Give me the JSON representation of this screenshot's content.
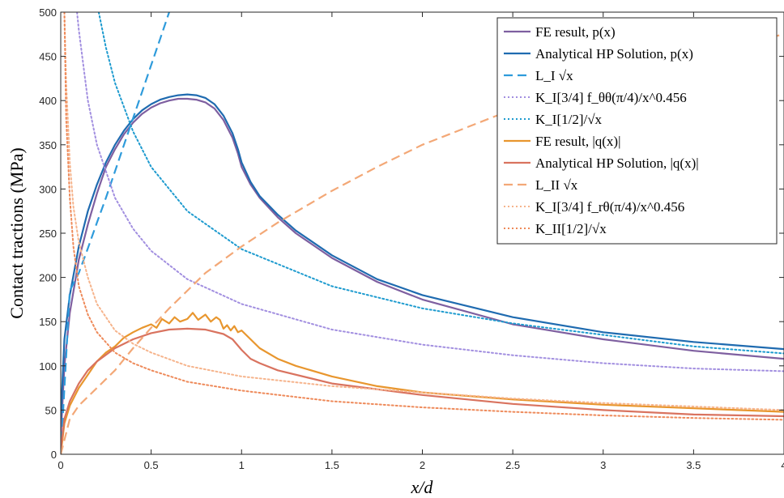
{
  "chart_data": {
    "type": "line",
    "xlabel": "x/d",
    "ylabel": "Contact tractions (MPa)",
    "xlim": [
      0,
      4
    ],
    "ylim": [
      0,
      500
    ],
    "xticks": [
      0,
      0.5,
      1,
      1.5,
      2,
      2.5,
      3,
      3.5,
      4
    ],
    "xtick_labels": [
      "0",
      "0.5",
      "1",
      "1.5",
      "2",
      "2.5",
      "3",
      "3.5",
      "4"
    ],
    "yticks": [
      0,
      50,
      100,
      150,
      200,
      250,
      300,
      350,
      400,
      450,
      500
    ],
    "ytick_labels": [
      "0",
      "50",
      "100",
      "150",
      "200",
      "250",
      "300",
      "350",
      "400",
      "450",
      "500"
    ],
    "grid": false,
    "legend_position": "top-right",
    "series": [
      {
        "name": "FE result, p(x)",
        "color": "#7E5FA0",
        "style": "solid",
        "width": 2.2,
        "x": [
          0,
          0.02,
          0.05,
          0.1,
          0.15,
          0.2,
          0.25,
          0.3,
          0.35,
          0.4,
          0.45,
          0.5,
          0.55,
          0.6,
          0.65,
          0.7,
          0.75,
          0.8,
          0.85,
          0.9,
          0.95,
          0.98,
          1.0,
          1.05,
          1.1,
          1.2,
          1.3,
          1.5,
          1.75,
          2.0,
          2.5,
          3.0,
          3.5,
          4.0
        ],
        "y": [
          20,
          100,
          160,
          220,
          260,
          295,
          325,
          345,
          362,
          375,
          385,
          392,
          397,
          400,
          402,
          402,
          401,
          398,
          391,
          378,
          358,
          340,
          325,
          305,
          290,
          268,
          250,
          222,
          195,
          175,
          147,
          130,
          117,
          108
        ]
      },
      {
        "name": "Analytical HP Solution, p(x)",
        "color": "#1F6BB0",
        "style": "solid",
        "width": 2.2,
        "x": [
          0,
          0.02,
          0.05,
          0.1,
          0.15,
          0.2,
          0.25,
          0.3,
          0.35,
          0.4,
          0.45,
          0.5,
          0.55,
          0.6,
          0.65,
          0.7,
          0.75,
          0.8,
          0.85,
          0.9,
          0.95,
          0.98,
          1.0,
          1.05,
          1.1,
          1.2,
          1.3,
          1.5,
          1.75,
          2.0,
          2.5,
          3.0,
          3.5,
          4.0
        ],
        "y": [
          40,
          130,
          180,
          235,
          275,
          305,
          330,
          350,
          366,
          379,
          389,
          396,
          401,
          404,
          406,
          407,
          406,
          403,
          396,
          383,
          363,
          345,
          330,
          308,
          292,
          271,
          253,
          225,
          198,
          180,
          155,
          138,
          127,
          119
        ]
      },
      {
        "name": "L_I √x",
        "color": "#2E9BDB",
        "style": "dash",
        "width": 2.2,
        "x": [
          0,
          0.05,
          0.1,
          0.15,
          0.2,
          0.25,
          0.3,
          0.35,
          0.4,
          0.45,
          0.5,
          0.55,
          0.6
        ],
        "y": [
          0,
          185,
          205,
          233,
          262,
          290,
          320,
          350,
          380,
          410,
          440,
          470,
          500
        ]
      },
      {
        "name": "K_I[3/4] f_θθ(π/4)/x^0.456",
        "color": "#A28FE0",
        "style": "dot",
        "width": 2,
        "x": [
          0.09,
          0.1,
          0.15,
          0.2,
          0.3,
          0.4,
          0.5,
          0.7,
          1.0,
          1.5,
          2.0,
          2.5,
          3.0,
          3.5,
          4.0
        ],
        "y": [
          500,
          480,
          400,
          350,
          290,
          255,
          230,
          198,
          170,
          141,
          124,
          112,
          103,
          97,
          94
        ]
      },
      {
        "name": "K_I[1/2]/√x",
        "color": "#1E9BCF",
        "style": "dot",
        "width": 2,
        "x": [
          0.21,
          0.25,
          0.3,
          0.4,
          0.5,
          0.7,
          1.0,
          1.5,
          2.0,
          2.5,
          3.0,
          3.5,
          4.0
        ],
        "y": [
          500,
          460,
          420,
          365,
          325,
          275,
          232,
          190,
          165,
          148,
          135,
          122,
          114
        ]
      },
      {
        "name": "FE result, |q(x)|",
        "color": "#E8962E",
        "style": "solid",
        "width": 2.2,
        "x": [
          0,
          0.02,
          0.05,
          0.1,
          0.15,
          0.2,
          0.25,
          0.3,
          0.35,
          0.4,
          0.45,
          0.5,
          0.53,
          0.56,
          0.6,
          0.63,
          0.66,
          0.7,
          0.73,
          0.76,
          0.8,
          0.83,
          0.86,
          0.88,
          0.9,
          0.92,
          0.94,
          0.96,
          0.98,
          1.0,
          1.05,
          1.1,
          1.2,
          1.3,
          1.5,
          1.75,
          2.0,
          2.5,
          3.0,
          3.5,
          4.0
        ],
        "y": [
          0,
          35,
          55,
          75,
          90,
          105,
          115,
          122,
          132,
          138,
          143,
          147,
          143,
          153,
          148,
          155,
          150,
          153,
          160,
          152,
          158,
          150,
          155,
          152,
          142,
          146,
          140,
          145,
          138,
          140,
          130,
          120,
          108,
          100,
          88,
          77,
          70,
          62,
          56,
          52,
          48
        ]
      },
      {
        "name": "Analytical HP Solution, |q(x)|",
        "color": "#D9735F",
        "style": "solid",
        "width": 2.2,
        "x": [
          0,
          0.02,
          0.05,
          0.1,
          0.15,
          0.2,
          0.3,
          0.4,
          0.5,
          0.6,
          0.7,
          0.8,
          0.9,
          0.95,
          1.0,
          1.05,
          1.1,
          1.2,
          1.5,
          2.0,
          2.5,
          3.0,
          3.5,
          4.0
        ],
        "y": [
          5,
          40,
          60,
          80,
          95,
          105,
          120,
          130,
          137,
          141,
          142,
          141,
          136,
          130,
          118,
          108,
          103,
          95,
          80,
          67,
          57,
          50,
          45,
          43
        ]
      },
      {
        "name": "L_II √x",
        "color": "#F3A877",
        "style": "dash",
        "width": 2.2,
        "x": [
          0,
          0.05,
          0.1,
          0.2,
          0.3,
          0.4,
          0.5,
          0.6,
          0.7,
          0.8,
          1.0,
          1.2,
          1.5,
          1.75,
          2.0,
          2.5,
          3.0,
          3.5,
          4.0
        ],
        "y": [
          0,
          40,
          55,
          75,
          95,
          120,
          143,
          165,
          185,
          205,
          235,
          262,
          298,
          325,
          350,
          390,
          425,
          452,
          475
        ]
      },
      {
        "name": "K_I[3/4] f_rθ(π/4)/x^0.456",
        "color": "#F6B48C",
        "style": "dot",
        "width": 2,
        "x": [
          0.02,
          0.03,
          0.05,
          0.07,
          0.1,
          0.15,
          0.2,
          0.3,
          0.4,
          0.5,
          0.7,
          1.0,
          1.5,
          2.0,
          2.5,
          3.0,
          3.5,
          4.0
        ],
        "y": [
          500,
          420,
          330,
          280,
          240,
          200,
          170,
          140,
          125,
          115,
          100,
          88,
          77,
          70,
          63,
          58,
          54,
          50
        ]
      },
      {
        "name": "K_II[1/2]/√x",
        "color": "#EE8A5A",
        "style": "dot",
        "width": 2,
        "x": [
          0.02,
          0.03,
          0.05,
          0.07,
          0.1,
          0.15,
          0.2,
          0.3,
          0.4,
          0.5,
          0.7,
          1.0,
          1.5,
          2.0,
          2.5,
          3.0,
          3.5,
          4.0
        ],
        "y": [
          500,
          380,
          290,
          235,
          190,
          158,
          138,
          115,
          103,
          95,
          82,
          72,
          60,
          53,
          48,
          44,
          41,
          39
        ]
      }
    ]
  }
}
